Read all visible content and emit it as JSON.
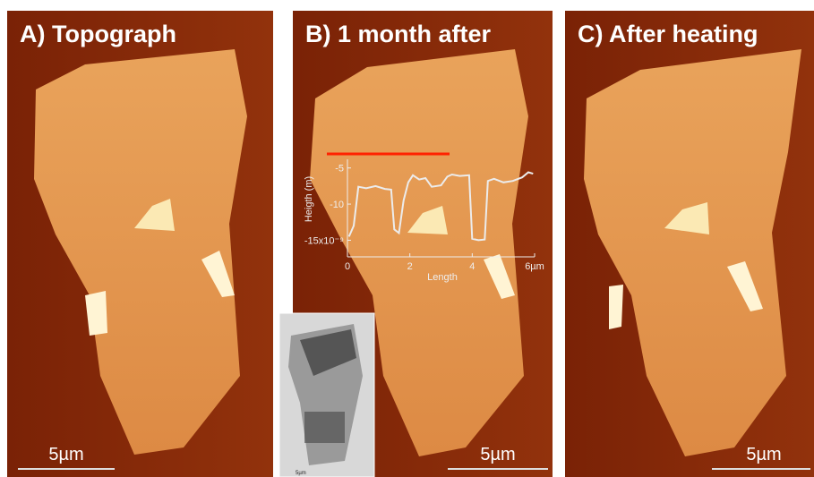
{
  "panels": [
    {
      "title": "A) Topograph",
      "scale_bar": "5µm"
    },
    {
      "title": "B) 1 month after",
      "scale_bar": "5µm"
    },
    {
      "title": "C) After heating",
      "scale_bar": "5µm"
    }
  ],
  "inset_image": {
    "scale_bar": "5µm"
  },
  "height_profile": {
    "type": "line",
    "x_label": "Length",
    "y_label": "Heigth (m)",
    "x": [
      0.05,
      0.2,
      0.35,
      0.6,
      0.9,
      1.2,
      1.4,
      1.5,
      1.65,
      1.8,
      1.95,
      2.1,
      2.3,
      2.5,
      2.7,
      3.0,
      3.2,
      3.35,
      3.6,
      3.9,
      4.0,
      4.2,
      4.4,
      4.5,
      4.7,
      5.0,
      5.3,
      5.6,
      5.8,
      5.95
    ],
    "values": [
      -14.5,
      -13,
      -7.6,
      -7.8,
      -7.5,
      -7.9,
      -8,
      -13.5,
      -14,
      -9.5,
      -7,
      -6,
      -6.6,
      -6.4,
      -7.6,
      -7.4,
      -6.2,
      -5.9,
      -6.1,
      -6,
      -14.8,
      -15,
      -14.9,
      -6.8,
      -6.5,
      -7,
      -6.8,
      -6.3,
      -5.6,
      -5.8
    ],
    "xlim": [
      0,
      6
    ],
    "ylim": [
      -17.3,
      -3.8
    ],
    "xticks": [
      0,
      2,
      4,
      {
        "value": 6,
        "label": "6µm"
      }
    ],
    "yticks": [
      -5,
      -10,
      {
        "value": -15,
        "label": "-15x10⁻⁹"
      }
    ],
    "color": "#ececec"
  }
}
